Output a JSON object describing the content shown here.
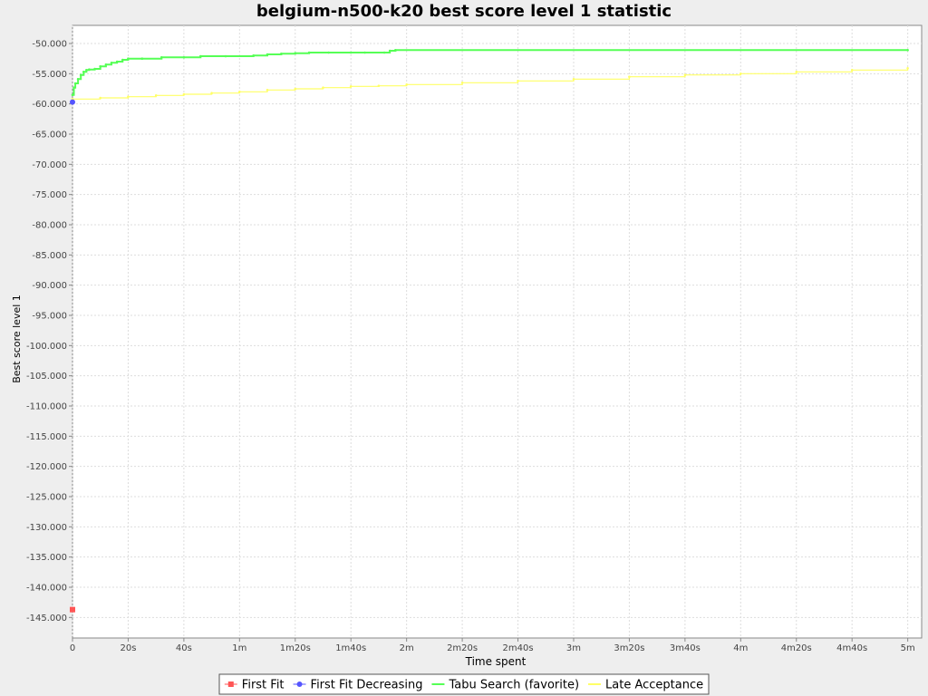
{
  "chart_data": {
    "type": "line",
    "title": "belgium-n500-k20 best score level 1 statistic",
    "xlabel": "Time spent",
    "ylabel": "Best score level 1",
    "xlim": [
      0,
      305
    ],
    "ylim": [
      -148400,
      -47000
    ],
    "grid": true,
    "legend_position": "bottom",
    "x_ticks": [
      {
        "v": 0,
        "label": "0"
      },
      {
        "v": 20,
        "label": "20s"
      },
      {
        "v": 40,
        "label": "40s"
      },
      {
        "v": 60,
        "label": "1m"
      },
      {
        "v": 80,
        "label": "1m20s"
      },
      {
        "v": 100,
        "label": "1m40s"
      },
      {
        "v": 120,
        "label": "2m"
      },
      {
        "v": 140,
        "label": "2m20s"
      },
      {
        "v": 160,
        "label": "2m40s"
      },
      {
        "v": 180,
        "label": "3m"
      },
      {
        "v": 200,
        "label": "3m20s"
      },
      {
        "v": 220,
        "label": "3m40s"
      },
      {
        "v": 240,
        "label": "4m"
      },
      {
        "v": 260,
        "label": "4m20s"
      },
      {
        "v": 280,
        "label": "4m40s"
      },
      {
        "v": 300,
        "label": "5m"
      }
    ],
    "y_ticks": [
      {
        "v": -50000,
        "label": "-50.000"
      },
      {
        "v": -55000,
        "label": "-55.000"
      },
      {
        "v": -60000,
        "label": "-60.000"
      },
      {
        "v": -65000,
        "label": "-65.000"
      },
      {
        "v": -70000,
        "label": "-70.000"
      },
      {
        "v": -75000,
        "label": "-75.000"
      },
      {
        "v": -80000,
        "label": "-80.000"
      },
      {
        "v": -85000,
        "label": "-85.000"
      },
      {
        "v": -90000,
        "label": "-90.000"
      },
      {
        "v": -95000,
        "label": "-95.000"
      },
      {
        "v": -100000,
        "label": "-100.000"
      },
      {
        "v": -105000,
        "label": "-105.000"
      },
      {
        "v": -110000,
        "label": "-110.000"
      },
      {
        "v": -115000,
        "label": "-115.000"
      },
      {
        "v": -120000,
        "label": "-120.000"
      },
      {
        "v": -125000,
        "label": "-125.000"
      },
      {
        "v": -130000,
        "label": "-130.000"
      },
      {
        "v": -135000,
        "label": "-135.000"
      },
      {
        "v": -140000,
        "label": "-140.000"
      },
      {
        "v": -145000,
        "label": "-145.000"
      }
    ],
    "series": [
      {
        "name": "First Fit",
        "color": "#ff5555",
        "marker": "square",
        "x": [
          0
        ],
        "y": [
          -143700
        ]
      },
      {
        "name": "First Fit Decreasing",
        "color": "#5555ff",
        "marker": "circle",
        "x": [
          0
        ],
        "y": [
          -59700
        ]
      },
      {
        "name": "Tabu Search (favorite)",
        "color": "#55ff55",
        "marker": "none",
        "x": [
          0,
          0.5,
          1,
          2,
          3,
          4,
          5,
          6,
          8,
          10,
          12,
          14,
          16,
          18,
          20,
          25,
          32,
          40,
          46,
          55,
          65,
          70,
          75,
          80,
          85,
          92,
          100,
          105,
          112,
          114,
          116,
          300
        ],
        "y": [
          -58500,
          -57300,
          -56600,
          -55900,
          -55200,
          -54700,
          -54400,
          -54300,
          -54200,
          -53800,
          -53500,
          -53200,
          -53000,
          -52700,
          -52500,
          -52500,
          -52300,
          -52300,
          -52100,
          -52100,
          -52000,
          -51800,
          -51700,
          -51600,
          -51500,
          -51500,
          -51500,
          -51500,
          -51500,
          -51200,
          -51100,
          -51100
        ]
      },
      {
        "name": "Late Acceptance",
        "color": "#ffff66",
        "marker": "none",
        "x": [
          0,
          10,
          20,
          30,
          40,
          50,
          60,
          70,
          80,
          90,
          100,
          110,
          120,
          140,
          160,
          180,
          200,
          220,
          240,
          260,
          280,
          300
        ],
        "y": [
          -59200,
          -59000,
          -58800,
          -58600,
          -58400,
          -58200,
          -58000,
          -57700,
          -57500,
          -57300,
          -57100,
          -57000,
          -56800,
          -56500,
          -56200,
          -55900,
          -55500,
          -55200,
          -55000,
          -54700,
          -54400,
          -54100
        ]
      }
    ]
  }
}
